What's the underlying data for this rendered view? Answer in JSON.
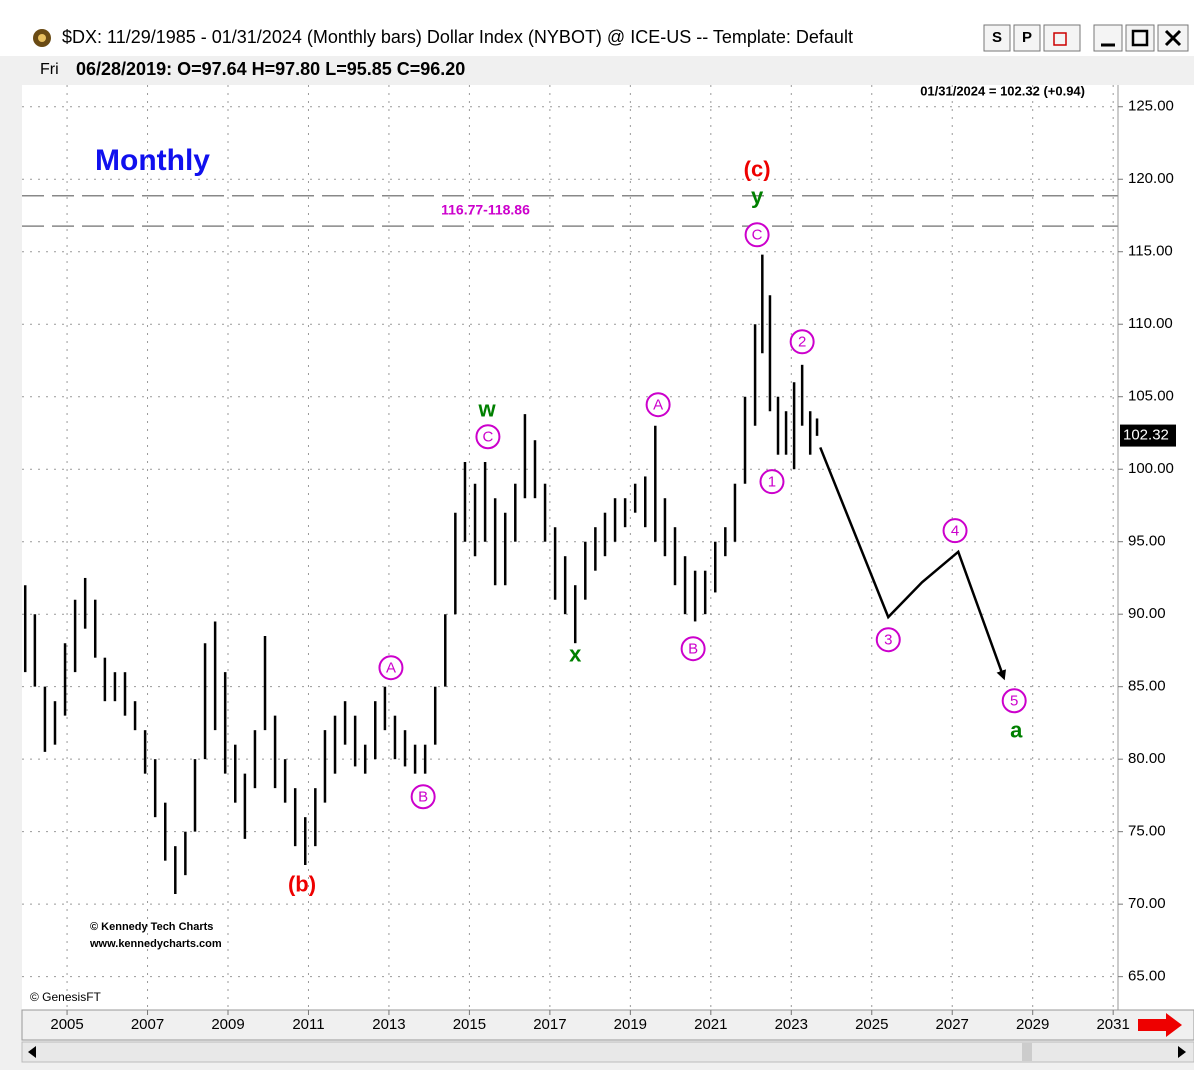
{
  "chart_data": {
    "type": "ohlc",
    "title": "$DX:  11/29/1985 - 01/31/2024  (Monthly bars)  Dollar Index (NYBOT) @ ICE-US  --  Template: Default",
    "buttons": [
      "S",
      "P"
    ],
    "info_day": "Fri",
    "info": "06/28/2019:  O=97.64  H=97.80  L=95.85  C=96.20",
    "last_label": "01/31/2024 = 102.32 (+0.94)",
    "last_price": 102.32,
    "subtitle": "Monthly",
    "credits": [
      "© Kennedy Tech Charts",
      "www.kennedycharts.com"
    ],
    "source": "© GenesisFT",
    "xlim": [
      2003.88,
      2031.12
    ],
    "ylim": [
      62.7,
      126.5
    ],
    "xticks": [
      2005,
      2007,
      2009,
      2011,
      2013,
      2015,
      2017,
      2019,
      2021,
      2023,
      2025,
      2027,
      2029,
      2031
    ],
    "yticks": [
      {
        "value": 65,
        "label": "65.00"
      },
      {
        "value": 70,
        "label": "70.00"
      },
      {
        "value": 75,
        "label": "75.00"
      },
      {
        "value": 80,
        "label": "80.00"
      },
      {
        "value": 85,
        "label": "85.00"
      },
      {
        "value": 90,
        "label": "90.00"
      },
      {
        "value": 95,
        "label": "95.00"
      },
      {
        "value": 100,
        "label": "100.00"
      },
      {
        "value": 105,
        "label": "105.00"
      },
      {
        "value": 110,
        "label": "110.00"
      },
      {
        "value": 115,
        "label": "115.00"
      },
      {
        "value": 120,
        "label": "120.00"
      },
      {
        "value": 125,
        "label": "125.00"
      }
    ],
    "grid": true,
    "series": [
      {
        "color": "#000000",
        "x": [
          2003.96,
          2004.2,
          2004.45,
          2004.7,
          2004.95,
          2005.2,
          2005.45,
          2005.7,
          2005.94,
          2006.19,
          2006.44,
          2006.69,
          2006.94,
          2007.19,
          2007.44,
          2007.69,
          2007.94,
          2008.18,
          2008.43,
          2008.68,
          2008.93,
          2009.18,
          2009.42,
          2009.67,
          2009.92,
          2010.17,
          2010.42,
          2010.67,
          2010.92,
          2011.17,
          2011.41,
          2011.66,
          2011.91,
          2012.16,
          2012.41,
          2012.66,
          2012.9,
          2013.15,
          2013.4,
          2013.65,
          2013.9,
          2014.15,
          2014.4,
          2014.65,
          2014.89,
          2015.14,
          2015.39,
          2015.64,
          2015.89,
          2016.14,
          2016.38,
          2016.63,
          2016.88,
          2017.13,
          2017.38,
          2017.63,
          2017.88,
          2018.13,
          2018.37,
          2018.62,
          2018.87,
          2019.12,
          2019.37,
          2019.62,
          2019.86,
          2020.11,
          2020.36,
          2020.61,
          2020.86,
          2021.11,
          2021.36,
          2021.6,
          2021.85,
          2022.1,
          2022.28,
          2022.47,
          2022.67,
          2022.87,
          2023.07,
          2023.27,
          2023.47,
          2023.64
        ],
        "high": [
          92,
          90,
          85,
          84,
          88,
          91,
          92.5,
          91,
          87,
          86,
          86,
          84,
          82,
          80,
          77,
          74,
          75,
          80,
          88,
          89.5,
          86,
          81,
          79,
          82,
          88.5,
          83,
          80,
          78,
          76,
          78,
          82,
          83,
          84,
          83,
          81,
          84,
          85,
          83,
          82,
          81,
          81,
          85,
          90,
          97,
          100.5,
          99,
          100.5,
          98,
          97,
          99,
          103.8,
          102,
          99,
          96,
          94,
          92,
          95,
          96,
          97,
          98,
          98,
          99,
          99.5,
          103,
          98,
          96,
          94,
          93,
          93,
          95,
          96,
          99,
          105,
          110,
          114.8,
          112,
          105,
          104,
          106,
          107.2,
          104,
          103.5
        ],
        "low": [
          86,
          85,
          80.5,
          81,
          83,
          86,
          89,
          87,
          84,
          84,
          83,
          82,
          79,
          76,
          73,
          70.7,
          72,
          75,
          80,
          82,
          79,
          77,
          74.5,
          78,
          82,
          78,
          77,
          74,
          72.7,
          74,
          77,
          79,
          81,
          79.5,
          79,
          80,
          82,
          80,
          79.5,
          79,
          79,
          81,
          85,
          90,
          95,
          94,
          95,
          92,
          92,
          95,
          98,
          98,
          95,
          91,
          90,
          88,
          91,
          93,
          94,
          95,
          96,
          97,
          96,
          95,
          94,
          92,
          90,
          89.5,
          90,
          91.5,
          94,
          95,
          99,
          103,
          108,
          104,
          101,
          101,
          100,
          103,
          101,
          102.3
        ]
      }
    ],
    "target_zone": {
      "label": "116.77-118.86",
      "values": [
        116.77,
        118.86
      ],
      "color": "#cc00cc"
    },
    "projection": {
      "color": "#000000",
      "x": [
        2023.72,
        2025.41,
        2026.25,
        2027.15,
        2028.27
      ],
      "y": [
        101.5,
        89.8,
        92.2,
        94.3,
        85.7
      ]
    },
    "annotations": [
      {
        "text": "(c)",
        "x": 2022.15,
        "y": 120.66,
        "color": "#ee0000",
        "circled": false
      },
      {
        "text": "y",
        "x": 2022.15,
        "y": 118.79,
        "color": "#008000",
        "circled": false
      },
      {
        "text": "C",
        "x": 2022.15,
        "y": 116.17,
        "color": "#cc00cc",
        "circled": true
      },
      {
        "text": "w",
        "x": 2015.44,
        "y": 104.1,
        "color": "#008000",
        "circled": false
      },
      {
        "text": "C",
        "x": 2015.46,
        "y": 102.24,
        "color": "#cc00cc",
        "circled": true
      },
      {
        "text": "A",
        "x": 2019.69,
        "y": 104.45,
        "color": "#cc00cc",
        "circled": true
      },
      {
        "text": "2",
        "x": 2023.27,
        "y": 108.79,
        "color": "#cc00cc",
        "circled": true
      },
      {
        "text": "1",
        "x": 2022.52,
        "y": 99.14,
        "color": "#cc00cc",
        "circled": true
      },
      {
        "text": "x",
        "x": 2017.63,
        "y": 87.21,
        "color": "#008000",
        "circled": false
      },
      {
        "text": "B",
        "x": 2020.56,
        "y": 87.62,
        "color": "#cc00cc",
        "circled": true
      },
      {
        "text": "A",
        "x": 2013.05,
        "y": 86.31,
        "color": "#cc00cc",
        "circled": true
      },
      {
        "text": "B",
        "x": 2013.85,
        "y": 77.41,
        "color": "#cc00cc",
        "circled": true
      },
      {
        "text": "(b)",
        "x": 2010.84,
        "y": 71.34,
        "color": "#ee0000",
        "circled": false
      },
      {
        "text": "3",
        "x": 2025.41,
        "y": 88.24,
        "color": "#cc00cc",
        "circled": true
      },
      {
        "text": "4",
        "x": 2027.07,
        "y": 95.76,
        "color": "#cc00cc",
        "circled": true
      },
      {
        "text": "5",
        "x": 2028.54,
        "y": 84.03,
        "color": "#cc00cc",
        "circled": true
      },
      {
        "text": "a",
        "x": 2028.59,
        "y": 81.97,
        "color": "#008000",
        "circled": false
      }
    ]
  }
}
